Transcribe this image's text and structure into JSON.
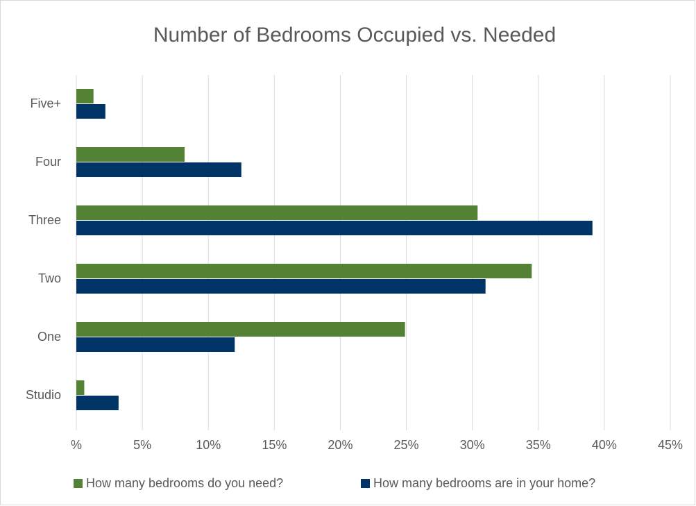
{
  "chart_data": {
    "type": "hbar",
    "title": "Number of Bedrooms Occupied vs. Needed",
    "categories": [
      "Five+",
      "Four",
      "Three",
      "Two",
      "One",
      "Studio"
    ],
    "series": [
      {
        "name": "How many bedrooms do you need?",
        "color": "#548235",
        "values": [
          1.3,
          8.2,
          30.4,
          34.5,
          24.9,
          0.6
        ]
      },
      {
        "name": "How many bedrooms are in your home?",
        "color": "#003366",
        "values": [
          2.2,
          12.5,
          39.1,
          31.0,
          12.0,
          3.2
        ]
      }
    ],
    "xlim": [
      0,
      45
    ],
    "xticks": [
      {
        "value": 0,
        "label": "%"
      },
      {
        "value": 5,
        "label": "5%"
      },
      {
        "value": 10,
        "label": "10%"
      },
      {
        "value": 15,
        "label": "15%"
      },
      {
        "value": 20,
        "label": "20%"
      },
      {
        "value": 25,
        "label": "25%"
      },
      {
        "value": 30,
        "label": "30%"
      },
      {
        "value": 35,
        "label": "35%"
      },
      {
        "value": 40,
        "label": "40%"
      },
      {
        "value": 45,
        "label": "45%"
      }
    ],
    "grid": true,
    "legend": "bottom"
  }
}
